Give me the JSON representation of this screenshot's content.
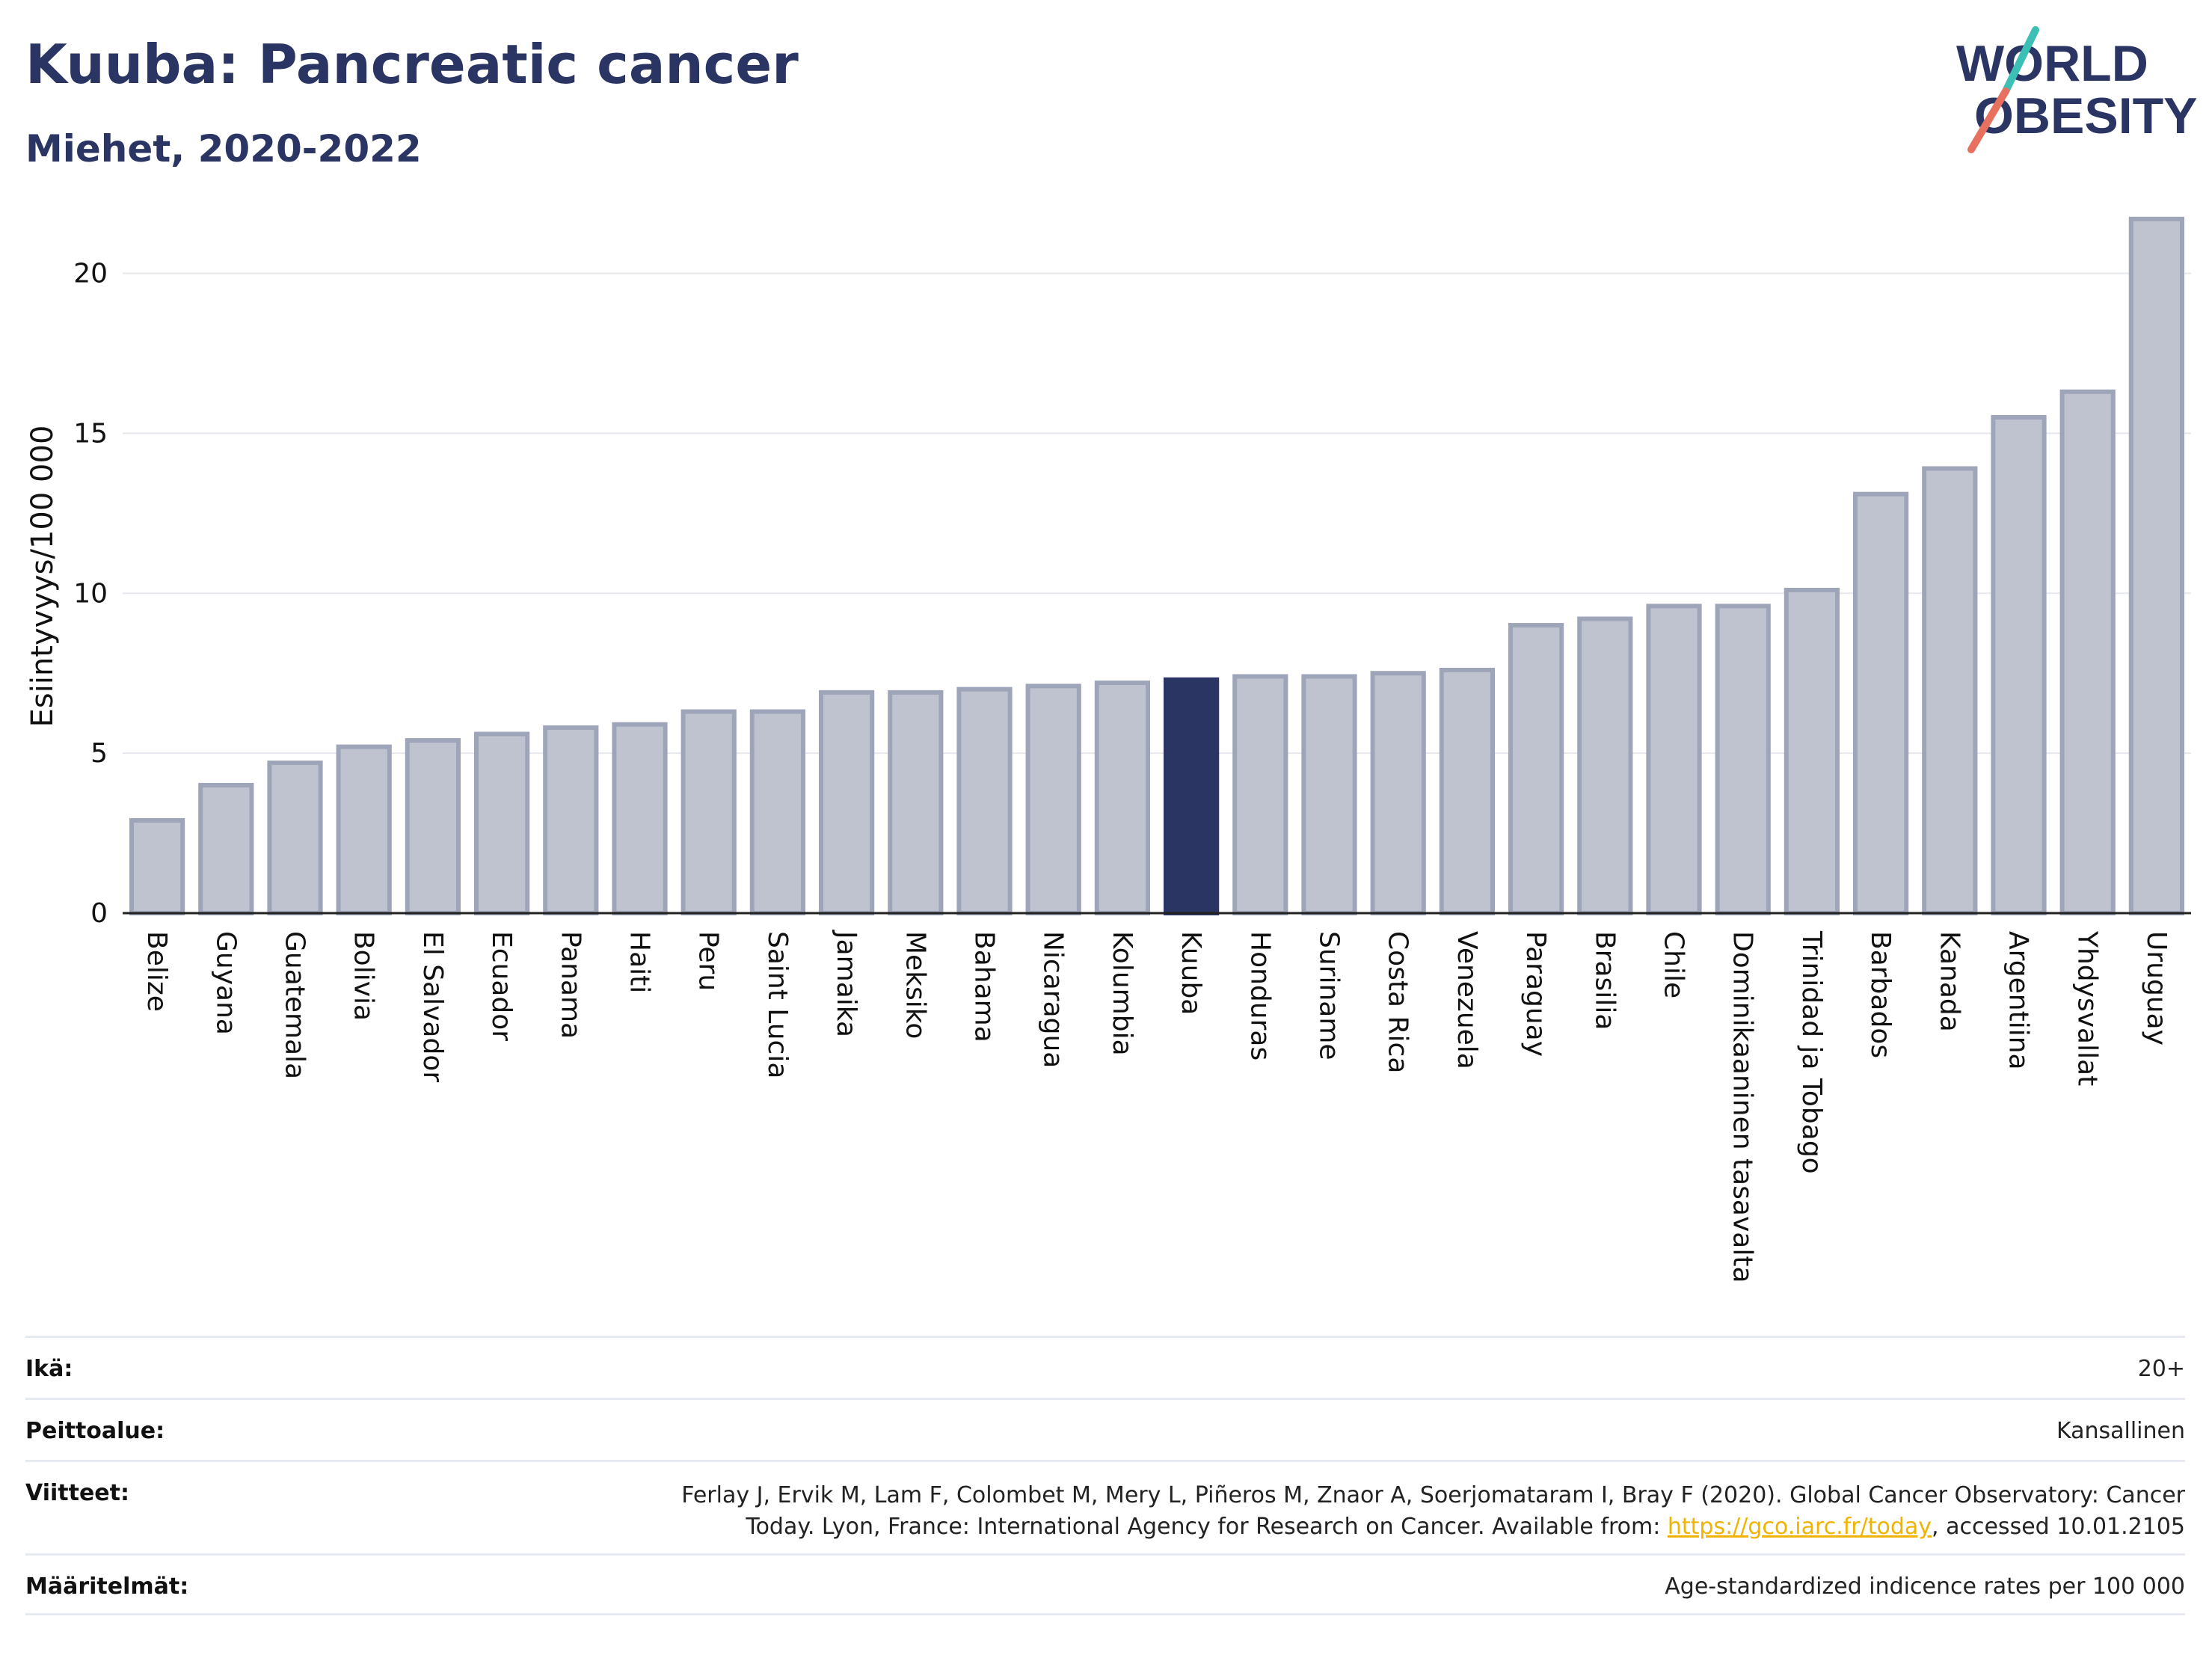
{
  "title": "Kuuba: Pancreatic cancer",
  "subtitle": "Miehet, 2020-2022",
  "logo": {
    "line1": "WORLD",
    "line2": "OBESITY"
  },
  "colors": {
    "bar": "#bfc3d0",
    "bar_stroke": "#9fa5b9",
    "highlight": "#2b3563",
    "grid": "#e6e8ee",
    "title": "#2b3563",
    "link": "#f0b400",
    "logo_teal": "#3cbfb4",
    "logo_coral": "#e8705f"
  },
  "chart_data": {
    "type": "bar",
    "ylabel": "Esiintyvyys/100 000",
    "ylim": [
      0,
      22
    ],
    "yticks": [
      0,
      5,
      10,
      15,
      20
    ],
    "highlight": "Kuuba",
    "categories": [
      "Belize",
      "Guyana",
      "Guatemala",
      "Bolivia",
      "El Salvador",
      "Ecuador",
      "Panama",
      "Haiti",
      "Peru",
      "Saint Lucia",
      "Jamaika",
      "Meksiko",
      "Bahama",
      "Nicaragua",
      "Kolumbia",
      "Kuuba",
      "Honduras",
      "Suriname",
      "Costa Rica",
      "Venezuela",
      "Paraguay",
      "Brasilia",
      "Chile",
      "Dominikaaninen tasavalta",
      "Trinidad ja Tobago",
      "Barbados",
      "Kanada",
      "Argentiina",
      "Yhdysvallat",
      "Uruguay"
    ],
    "values": [
      2.9,
      4.0,
      4.7,
      5.2,
      5.4,
      5.6,
      5.8,
      5.9,
      6.3,
      6.3,
      6.9,
      6.9,
      7.0,
      7.1,
      7.2,
      7.3,
      7.4,
      7.4,
      7.5,
      7.6,
      9.0,
      9.2,
      9.6,
      9.6,
      10.1,
      13.1,
      13.9,
      15.5,
      16.3,
      21.7
    ]
  },
  "meta": {
    "age_label": "Ikä:",
    "age_value": "20+",
    "coverage_label": "Peittoalue:",
    "coverage_value": "Kansallinen",
    "refs_label": "Viitteet:",
    "refs_line1": "Ferlay J, Ervik M, Lam F, Colombet M, Mery L, Piñeros M, Znaor A, Soerjomataram I, Bray F (2020). Global Cancer Observatory: Cancer",
    "refs_line2_pre": "Today. Lyon, France: International Agency for Research on Cancer. Available from: ",
    "refs_link": "https://gco.iarc.fr/today",
    "refs_line2_post": ", accessed 10.01.2105",
    "defs_label": "Määritelmät:",
    "defs_value": "Age-standardized indicence rates per 100 000"
  }
}
